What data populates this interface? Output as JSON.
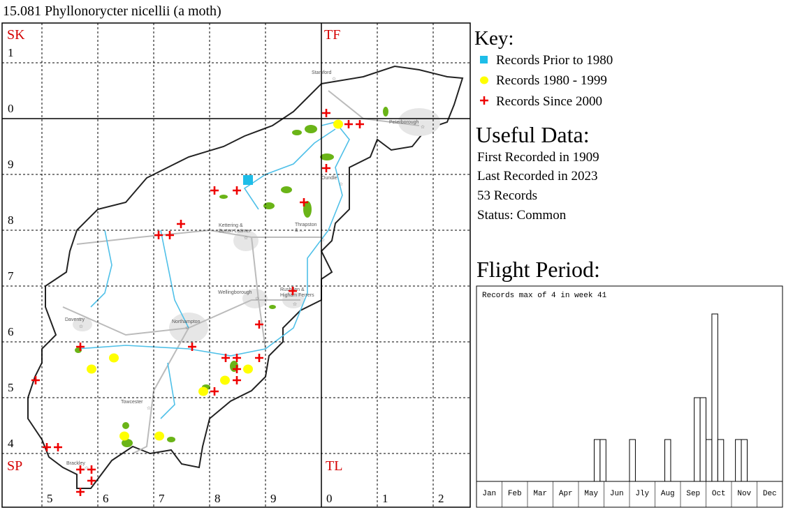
{
  "header": {
    "title": "15.081 Phyllonorycter nicellii (a moth)"
  },
  "map": {
    "grid_squares": [
      "SK",
      "TF",
      "SP",
      "TL"
    ],
    "row_labels": [
      "1",
      "0",
      "9",
      "8",
      "7",
      "6",
      "5",
      "4"
    ],
    "column_labels": [
      "5",
      "6",
      "7",
      "8",
      "9",
      "0",
      "1",
      "2"
    ],
    "towns": [
      [
        "Stamford"
      ],
      [
        "Peterborough"
      ],
      [
        "Oundle"
      ],
      [
        "Kettering &",
        "Burton Latimer"
      ],
      [
        "Thrapston",
        "& ..."
      ],
      [
        "Rushden &",
        "Higham Ferrers"
      ],
      [
        "Wellingborough"
      ],
      [
        "Daventry"
      ],
      [
        "Northampton"
      ],
      [
        "Towcester"
      ],
      [
        "Brackley"
      ]
    ]
  },
  "key": {
    "title": "Key:",
    "items": [
      "Records Prior to 1980",
      "Records 1980 - 1999",
      "Records Since 2000"
    ]
  },
  "useful_data": {
    "title": "Useful Data:",
    "lines": [
      "First Recorded in 1909",
      "Last Recorded in 2023",
      "53 Records",
      "Status: Common"
    ]
  },
  "flight_period": {
    "title": "Flight Period:",
    "note": "Records max of 4 in week 41",
    "months": [
      "Jan",
      "Feb",
      "Mar",
      "Apr",
      "May",
      "Jun",
      "Jly",
      "Aug",
      "Sep",
      "Oct",
      "Nov",
      "Dec"
    ],
    "weekly_counts": [
      0,
      0,
      0,
      0,
      0,
      0,
      0,
      0,
      0,
      0,
      0,
      0,
      0,
      0,
      0,
      0,
      0,
      0,
      0,
      0,
      1,
      1,
      0,
      0,
      0,
      0,
      1,
      0,
      0,
      0,
      0,
      0,
      1,
      0,
      0,
      0,
      0,
      2,
      2,
      1,
      4,
      1,
      0,
      0,
      1,
      1,
      0,
      0,
      0,
      0,
      0,
      0
    ]
  }
}
